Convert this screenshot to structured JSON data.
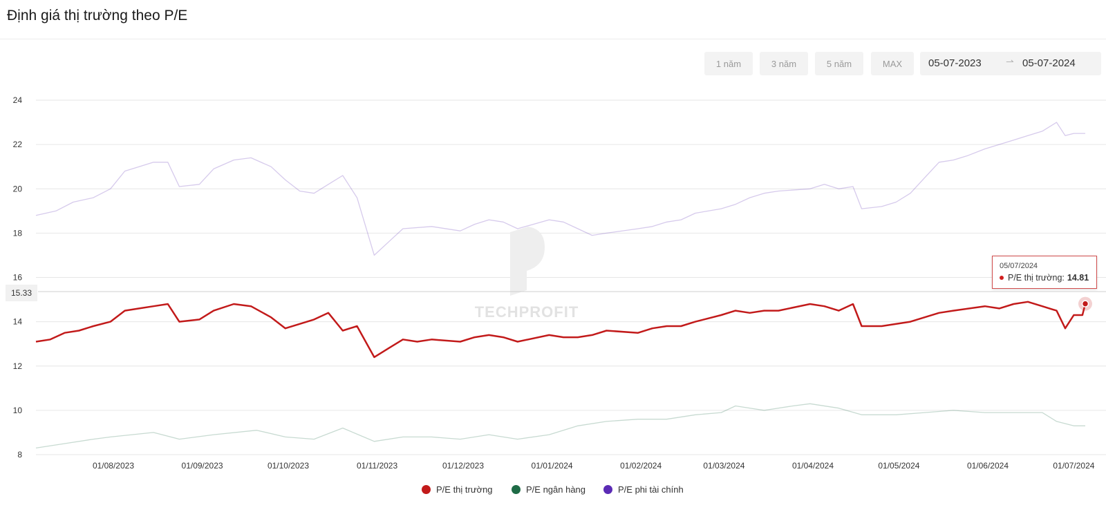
{
  "page": {
    "title": "Định giá thị trường theo P/E"
  },
  "toolbar": {
    "ranges": [
      "1 năm",
      "3 năm",
      "5 năm",
      "MAX"
    ],
    "date_from": "05-07-2023",
    "date_to": "05-07-2024",
    "arrow_icon": "arrow-right-icon"
  },
  "watermark": {
    "text": "TECHPROFIT"
  },
  "tooltip": {
    "date": "05/07/2024",
    "label": "P/E thị trường:",
    "value": "14.81"
  },
  "crosshair": {
    "value": "15.33"
  },
  "chart_data": {
    "type": "line",
    "x_start": "2023-07-05",
    "x_end": "2024-07-05",
    "ylim": [
      8,
      24
    ],
    "y_ticks": [
      "8",
      "10",
      "12",
      "14",
      "16",
      "18",
      "20",
      "22",
      "24"
    ],
    "x_ticks": [
      "01/08/2023",
      "01/09/2023",
      "01/10/2023",
      "01/11/2023",
      "01/12/2023",
      "01/01/2024",
      "01/02/2024",
      "01/03/2024",
      "01/04/2024",
      "01/05/2024",
      "01/06/2024",
      "01/07/2024"
    ],
    "grid": true,
    "legend_position": "bottom",
    "series": [
      {
        "name": "P/E thị trường",
        "color": "#c21a1a",
        "points": [
          [
            "2023-07-05",
            13.1
          ],
          [
            "2023-07-10",
            13.2
          ],
          [
            "2023-07-15",
            13.5
          ],
          [
            "2023-07-20",
            13.6
          ],
          [
            "2023-07-25",
            13.8
          ],
          [
            "2023-07-31",
            14.0
          ],
          [
            "2023-08-05",
            14.5
          ],
          [
            "2023-08-10",
            14.6
          ],
          [
            "2023-08-15",
            14.7
          ],
          [
            "2023-08-20",
            14.8
          ],
          [
            "2023-08-24",
            14.0
          ],
          [
            "2023-08-31",
            14.1
          ],
          [
            "2023-09-05",
            14.5
          ],
          [
            "2023-09-12",
            14.8
          ],
          [
            "2023-09-18",
            14.7
          ],
          [
            "2023-09-25",
            14.2
          ],
          [
            "2023-09-30",
            13.7
          ],
          [
            "2023-10-05",
            13.9
          ],
          [
            "2023-10-10",
            14.1
          ],
          [
            "2023-10-15",
            14.4
          ],
          [
            "2023-10-20",
            13.6
          ],
          [
            "2023-10-25",
            13.8
          ],
          [
            "2023-10-31",
            12.4
          ],
          [
            "2023-11-05",
            12.8
          ],
          [
            "2023-11-10",
            13.2
          ],
          [
            "2023-11-15",
            13.1
          ],
          [
            "2023-11-20",
            13.2
          ],
          [
            "2023-11-30",
            13.1
          ],
          [
            "2023-12-05",
            13.3
          ],
          [
            "2023-12-10",
            13.4
          ],
          [
            "2023-12-15",
            13.3
          ],
          [
            "2023-12-20",
            13.1
          ],
          [
            "2023-12-31",
            13.4
          ],
          [
            "2024-01-05",
            13.3
          ],
          [
            "2024-01-10",
            13.3
          ],
          [
            "2024-01-15",
            13.4
          ],
          [
            "2024-01-20",
            13.6
          ],
          [
            "2024-01-31",
            13.5
          ],
          [
            "2024-02-05",
            13.7
          ],
          [
            "2024-02-10",
            13.8
          ],
          [
            "2024-02-15",
            13.8
          ],
          [
            "2024-02-20",
            14.0
          ],
          [
            "2024-02-29",
            14.3
          ],
          [
            "2024-03-05",
            14.5
          ],
          [
            "2024-03-10",
            14.4
          ],
          [
            "2024-03-15",
            14.5
          ],
          [
            "2024-03-20",
            14.5
          ],
          [
            "2024-03-31",
            14.8
          ],
          [
            "2024-04-05",
            14.7
          ],
          [
            "2024-04-10",
            14.5
          ],
          [
            "2024-04-15",
            14.8
          ],
          [
            "2024-04-18",
            13.8
          ],
          [
            "2024-04-25",
            13.8
          ],
          [
            "2024-05-05",
            14.0
          ],
          [
            "2024-05-10",
            14.2
          ],
          [
            "2024-05-15",
            14.4
          ],
          [
            "2024-05-20",
            14.5
          ],
          [
            "2024-05-31",
            14.7
          ],
          [
            "2024-06-05",
            14.6
          ],
          [
            "2024-06-10",
            14.8
          ],
          [
            "2024-06-15",
            14.9
          ],
          [
            "2024-06-20",
            14.7
          ],
          [
            "2024-06-25",
            14.5
          ],
          [
            "2024-06-28",
            13.7
          ],
          [
            "2024-07-01",
            14.3
          ],
          [
            "2024-07-04",
            14.3
          ],
          [
            "2024-07-05",
            14.81
          ]
        ]
      },
      {
        "name": "P/E ngân hàng",
        "color": "#1e6b46",
        "points": [
          [
            "2023-07-05",
            8.3
          ],
          [
            "2023-07-15",
            8.5
          ],
          [
            "2023-07-25",
            8.7
          ],
          [
            "2023-07-31",
            8.8
          ],
          [
            "2023-08-15",
            9.0
          ],
          [
            "2023-08-24",
            8.7
          ],
          [
            "2023-09-05",
            8.9
          ],
          [
            "2023-09-20",
            9.1
          ],
          [
            "2023-09-30",
            8.8
          ],
          [
            "2023-10-10",
            8.7
          ],
          [
            "2023-10-20",
            9.2
          ],
          [
            "2023-10-31",
            8.6
          ],
          [
            "2023-11-10",
            8.8
          ],
          [
            "2023-11-20",
            8.8
          ],
          [
            "2023-11-30",
            8.7
          ],
          [
            "2023-12-10",
            8.9
          ],
          [
            "2023-12-20",
            8.7
          ],
          [
            "2023-12-31",
            8.9
          ],
          [
            "2024-01-10",
            9.3
          ],
          [
            "2024-01-20",
            9.5
          ],
          [
            "2024-01-31",
            9.6
          ],
          [
            "2024-02-10",
            9.6
          ],
          [
            "2024-02-20",
            9.8
          ],
          [
            "2024-02-29",
            9.9
          ],
          [
            "2024-03-05",
            10.2
          ],
          [
            "2024-03-15",
            10.0
          ],
          [
            "2024-03-25",
            10.2
          ],
          [
            "2024-03-31",
            10.3
          ],
          [
            "2024-04-10",
            10.1
          ],
          [
            "2024-04-18",
            9.8
          ],
          [
            "2024-04-30",
            9.8
          ],
          [
            "2024-05-10",
            9.9
          ],
          [
            "2024-05-20",
            10.0
          ],
          [
            "2024-05-31",
            9.9
          ],
          [
            "2024-06-10",
            9.9
          ],
          [
            "2024-06-20",
            9.9
          ],
          [
            "2024-06-25",
            9.5
          ],
          [
            "2024-07-01",
            9.3
          ],
          [
            "2024-07-05",
            9.3
          ]
        ]
      },
      {
        "name": "P/E phi tài chính",
        "color": "#5b2bb5",
        "points": [
          [
            "2023-07-05",
            18.8
          ],
          [
            "2023-07-12",
            19.0
          ],
          [
            "2023-07-18",
            19.4
          ],
          [
            "2023-07-25",
            19.6
          ],
          [
            "2023-07-31",
            20.0
          ],
          [
            "2023-08-05",
            20.8
          ],
          [
            "2023-08-10",
            21.0
          ],
          [
            "2023-08-15",
            21.2
          ],
          [
            "2023-08-20",
            21.2
          ],
          [
            "2023-08-24",
            20.1
          ],
          [
            "2023-08-31",
            20.2
          ],
          [
            "2023-09-05",
            20.9
          ],
          [
            "2023-09-12",
            21.3
          ],
          [
            "2023-09-18",
            21.4
          ],
          [
            "2023-09-25",
            21.0
          ],
          [
            "2023-09-30",
            20.4
          ],
          [
            "2023-10-05",
            19.9
          ],
          [
            "2023-10-10",
            19.8
          ],
          [
            "2023-10-15",
            20.2
          ],
          [
            "2023-10-20",
            20.6
          ],
          [
            "2023-10-25",
            19.6
          ],
          [
            "2023-10-31",
            17.0
          ],
          [
            "2023-11-05",
            17.6
          ],
          [
            "2023-11-10",
            18.2
          ],
          [
            "2023-11-20",
            18.3
          ],
          [
            "2023-11-30",
            18.1
          ],
          [
            "2023-12-05",
            18.4
          ],
          [
            "2023-12-10",
            18.6
          ],
          [
            "2023-12-15",
            18.5
          ],
          [
            "2023-12-20",
            18.2
          ],
          [
            "2023-12-31",
            18.6
          ],
          [
            "2024-01-05",
            18.5
          ],
          [
            "2024-01-10",
            18.2
          ],
          [
            "2024-01-15",
            17.9
          ],
          [
            "2024-01-20",
            18.0
          ],
          [
            "2024-01-31",
            18.2
          ],
          [
            "2024-02-05",
            18.3
          ],
          [
            "2024-02-10",
            18.5
          ],
          [
            "2024-02-15",
            18.6
          ],
          [
            "2024-02-20",
            18.9
          ],
          [
            "2024-02-29",
            19.1
          ],
          [
            "2024-03-05",
            19.3
          ],
          [
            "2024-03-10",
            19.6
          ],
          [
            "2024-03-15",
            19.8
          ],
          [
            "2024-03-20",
            19.9
          ],
          [
            "2024-03-31",
            20.0
          ],
          [
            "2024-04-05",
            20.2
          ],
          [
            "2024-04-10",
            20.0
          ],
          [
            "2024-04-15",
            20.1
          ],
          [
            "2024-04-18",
            19.1
          ],
          [
            "2024-04-25",
            19.2
          ],
          [
            "2024-04-30",
            19.4
          ],
          [
            "2024-05-05",
            19.8
          ],
          [
            "2024-05-10",
            20.5
          ],
          [
            "2024-05-15",
            21.2
          ],
          [
            "2024-05-20",
            21.3
          ],
          [
            "2024-05-25",
            21.5
          ],
          [
            "2024-05-31",
            21.8
          ],
          [
            "2024-06-05",
            22.0
          ],
          [
            "2024-06-10",
            22.2
          ],
          [
            "2024-06-15",
            22.4
          ],
          [
            "2024-06-20",
            22.6
          ],
          [
            "2024-06-25",
            23.0
          ],
          [
            "2024-06-28",
            22.4
          ],
          [
            "2024-07-01",
            22.5
          ],
          [
            "2024-07-05",
            22.5
          ]
        ]
      }
    ]
  }
}
